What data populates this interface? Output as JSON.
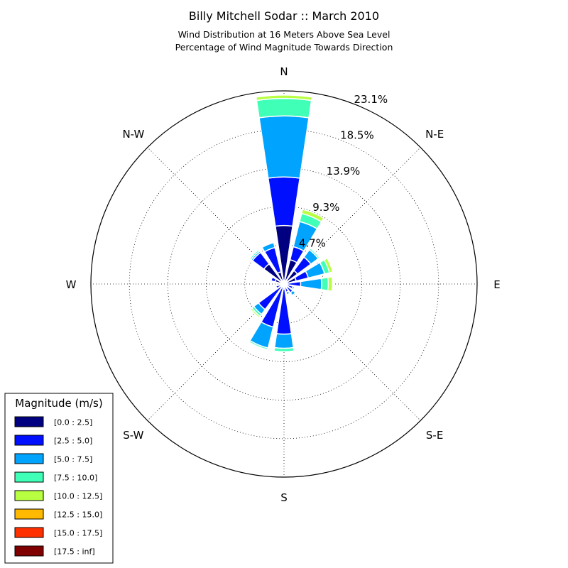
{
  "chart_data": {
    "type": "windrose",
    "title": "Billy Mitchell Sodar :: March 2010",
    "subtitle_lines": [
      "Wind Distribution at 16 Meters Above Sea Level",
      "Percentage of Wind Magnitude Towards Direction"
    ],
    "directions": [
      "N",
      "N-E",
      "E",
      "S-E",
      "S",
      "S-W",
      "W",
      "N-W"
    ],
    "radial_ticks": [
      {
        "value": 4.7,
        "label": "4.7%"
      },
      {
        "value": 9.3,
        "label": "9.3%"
      },
      {
        "value": 13.9,
        "label": "13.9%"
      },
      {
        "value": 18.5,
        "label": "18.5%"
      },
      {
        "value": 23.1,
        "label": "23.1%"
      }
    ],
    "rmax": 23.1,
    "legend": {
      "title": "Magnitude (m/s)",
      "placement": "lower-left",
      "bins": [
        {
          "label": "[0.0 : 2.5]",
          "color": "#000080"
        },
        {
          "label": "[2.5 : 5.0]",
          "color": "#0010ff"
        },
        {
          "label": "[5.0 : 7.5]",
          "color": "#00a4ff"
        },
        {
          "label": "[7.5 : 10.0]",
          "color": "#40ffb7"
        },
        {
          "label": "[10.0 : 12.5]",
          "color": "#b7ff40"
        },
        {
          "label": "[12.5 : 15.0]",
          "color": "#ffb900"
        },
        {
          "label": "[15.0 : 17.5]",
          "color": "#ff3000"
        },
        {
          "label": "[17.5 : inf]",
          "color": "#800000"
        }
      ]
    },
    "sectors": [
      {
        "direction": 0,
        "cumulative": [
          7.0,
          12.8,
          20.1,
          22.2,
          22.6
        ]
      },
      {
        "direction": 22.5,
        "cumulative": [
          3.0,
          4.6,
          7.7,
          8.7,
          9.2
        ]
      },
      {
        "direction": 45,
        "cumulative": [
          2.0,
          4.0,
          5.1,
          5.3,
          5.4
        ]
      },
      {
        "direction": 67.5,
        "cumulative": [
          1.5,
          3.0,
          5.0,
          5.6,
          6.0
        ]
      },
      {
        "direction": 90,
        "cumulative": [
          0.4,
          2.0,
          4.5,
          5.3,
          5.8
        ]
      },
      {
        "direction": 112.5,
        "cumulative": [
          0.4,
          1.1,
          1.3
        ]
      },
      {
        "direction": 135,
        "cumulative": [
          0.3,
          1.3,
          1.7
        ]
      },
      {
        "direction": 157.5,
        "cumulative": [
          0.4,
          1.0,
          1.3
        ]
      },
      {
        "direction": 180,
        "cumulative": [
          0.6,
          6.0,
          7.7,
          8.1
        ]
      },
      {
        "direction": 202.5,
        "cumulative": [
          0.3,
          5.3,
          7.9,
          8.1
        ]
      },
      {
        "direction": 225,
        "cumulative": [
          0.4,
          3.8,
          4.5,
          4.8,
          5.0
        ]
      },
      {
        "direction": 247.5,
        "cumulative": [
          0.3,
          1.0
        ]
      },
      {
        "direction": 270,
        "cumulative": [
          0.3,
          0.6
        ]
      },
      {
        "direction": 292.5,
        "cumulative": [
          1.1,
          1.6
        ]
      },
      {
        "direction": 315,
        "cumulative": [
          3.0,
          4.7,
          4.9,
          5.1
        ]
      },
      {
        "direction": 337.5,
        "cumulative": [
          1.5,
          4.5,
          5.1
        ]
      }
    ]
  }
}
